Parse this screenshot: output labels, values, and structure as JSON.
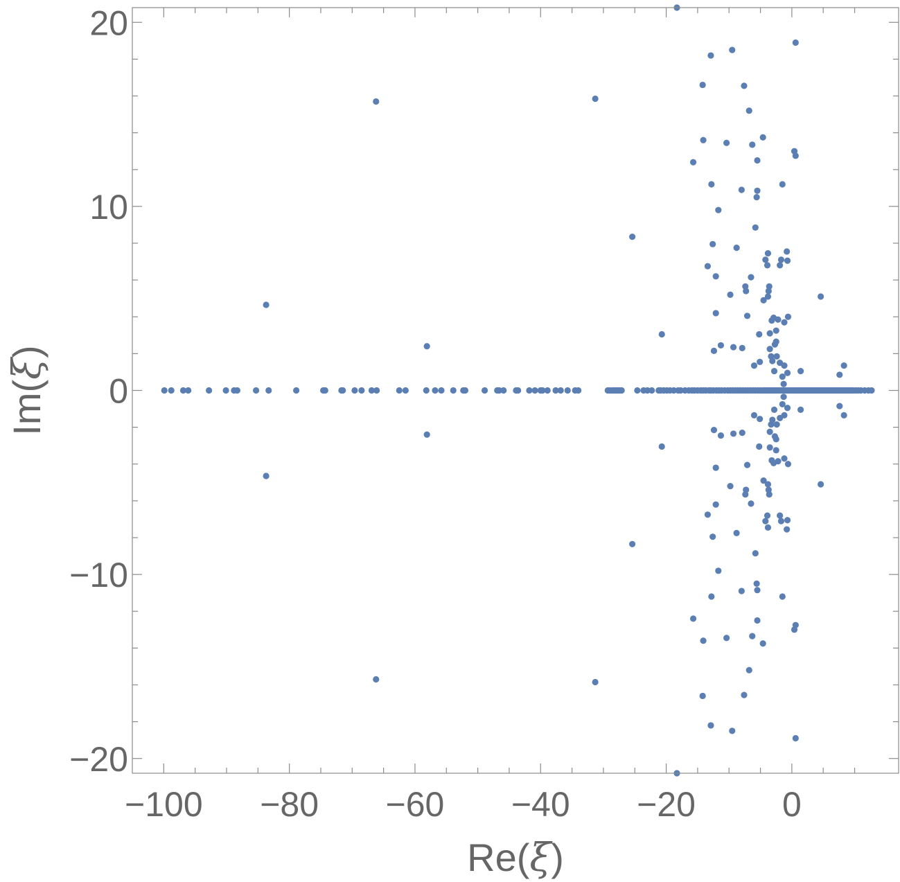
{
  "chart_data": {
    "type": "scatter",
    "xlabel": {
      "prefix": "Re(",
      "symbol": "ξ",
      "suffix": ")"
    },
    "ylabel": {
      "prefix": "Im(",
      "symbol": "ξ",
      "suffix": ")"
    },
    "xlim": [
      -105,
      17
    ],
    "ylim": [
      -20.8,
      20.8
    ],
    "x_ticks": [
      {
        "value": -100,
        "label": "−100"
      },
      {
        "value": -80,
        "label": "−80"
      },
      {
        "value": -60,
        "label": "−60"
      },
      {
        "value": -40,
        "label": "−40"
      },
      {
        "value": -20,
        "label": "−20"
      },
      {
        "value": 0,
        "label": "0"
      }
    ],
    "y_ticks": [
      {
        "value": -20,
        "label": "−20"
      },
      {
        "value": -10,
        "label": "−10"
      },
      {
        "value": 0,
        "label": "0"
      },
      {
        "value": 10,
        "label": "10"
      },
      {
        "value": 20,
        "label": "20"
      }
    ],
    "marker_color": "#5b7fb3",
    "frame_color": "#8a8a8a",
    "grid": false,
    "points_real_axis_x": [
      -99.9,
      -98.8,
      -96.9,
      -96.1,
      -92.8,
      -90.1,
      -88.8,
      -88.3,
      -85.3,
      -83.3,
      -78.9,
      -74.6,
      -74.3,
      -71.7,
      -71.5,
      -69.6,
      -68.5,
      -66.9,
      -66.1,
      -62.5,
      -61.5,
      -58.2,
      -56.8,
      -55.8,
      -53.9,
      -52.3,
      -52.0,
      -48.9,
      -46.9,
      -46.6,
      -45.9,
      -43.9,
      -43.6,
      -41.8,
      -40.9,
      -40.0,
      -39.7,
      -38.9,
      -37.6,
      -36.8,
      -35.7,
      -34.5,
      -34.0,
      -29.3,
      -29.0,
      -28.6,
      -28.3,
      -28.0,
      -27.7,
      -27.4,
      -27.1,
      -24.6,
      -23.6,
      -23.0,
      -22.3,
      -21.2,
      -20.9,
      -20.4,
      -19.9,
      -19.4,
      -18.8,
      -18.1,
      -17.7,
      -17.0,
      -16.4,
      -15.9,
      -15.5,
      -15.0,
      -14.5,
      -14.1,
      -13.7,
      -13.2,
      -12.9,
      -12.5,
      -12.0,
      -11.6,
      -11.2,
      -10.7,
      -10.2,
      -9.8,
      -9.4,
      -9.0,
      -8.6,
      -8.2,
      -7.8,
      -7.4,
      -7.0,
      -6.6,
      -6.2,
      -5.8,
      -5.4,
      -5.0,
      -4.6,
      -4.3,
      -4.0,
      -3.7,
      -3.4,
      -3.1,
      -2.8,
      -2.5,
      -2.2,
      -1.9,
      -1.6,
      -1.3,
      -1.0,
      -0.7,
      -0.4,
      -0.1,
      0.2,
      0.5,
      0.8,
      1.1,
      1.4,
      1.7,
      2.0,
      2.3,
      2.6,
      2.9,
      3.2,
      3.5,
      3.8,
      4.1,
      4.4,
      4.7,
      5.0,
      5.3,
      5.6,
      5.9,
      6.2,
      6.5,
      6.8,
      7.1,
      7.4,
      7.7,
      8.0,
      8.3,
      8.6,
      8.9,
      9.2,
      9.5,
      9.8,
      10.2,
      10.6,
      11.0,
      11.6,
      12.2,
      12.7
    ],
    "points_conjugate_pairs": [
      [
        -83.7,
        4.65
      ],
      [
        -66.2,
        15.7
      ],
      [
        -58.1,
        2.4
      ],
      [
        -31.3,
        15.85
      ],
      [
        -25.4,
        8.35
      ],
      [
        -20.7,
        3.05
      ],
      [
        -18.3,
        20.8
      ],
      [
        -15.7,
        12.4
      ],
      [
        -14.2,
        16.6
      ],
      [
        -14.1,
        13.6
      ],
      [
        -13.4,
        6.75
      ],
      [
        -12.9,
        18.2
      ],
      [
        -12.8,
        11.2
      ],
      [
        -12.6,
        7.95
      ],
      [
        -12.4,
        2.15
      ],
      [
        -12.1,
        4.2
      ],
      [
        -12.1,
        6.2
      ],
      [
        -11.7,
        9.8
      ],
      [
        -11.3,
        2.45
      ],
      [
        -10.4,
        13.45
      ],
      [
        -9.8,
        5.2
      ],
      [
        -9.5,
        18.5
      ],
      [
        -9.3,
        2.35
      ],
      [
        -8.8,
        7.75
      ],
      [
        -8.0,
        10.9
      ],
      [
        -7.9,
        2.3
      ],
      [
        -7.6,
        16.55
      ],
      [
        -7.4,
        5.65
      ],
      [
        -7.3,
        5.4
      ],
      [
        -7.1,
        4.05
      ],
      [
        -6.8,
        15.2
      ],
      [
        -6.5,
        6.15
      ],
      [
        -6.3,
        13.35
      ],
      [
        -6.0,
        1.35
      ],
      [
        -5.8,
        8.85
      ],
      [
        -5.6,
        10.5
      ],
      [
        -5.5,
        10.85
      ],
      [
        -5.5,
        12.5
      ],
      [
        -5.2,
        3.05
      ],
      [
        -5.1,
        1.55
      ],
      [
        -4.6,
        13.75
      ],
      [
        -4.5,
        4.9
      ],
      [
        -4.2,
        7.1
      ],
      [
        -3.9,
        6.8
      ],
      [
        -3.8,
        7.45
      ],
      [
        -3.8,
        5.1
      ],
      [
        -3.7,
        5.4
      ],
      [
        -3.6,
        5.65
      ],
      [
        -3.5,
        2.25
      ],
      [
        -3.5,
        3.1
      ],
      [
        -3.3,
        1.85
      ],
      [
        -3.2,
        3.8
      ],
      [
        -3.1,
        1.6
      ],
      [
        -2.9,
        3.95
      ],
      [
        -2.8,
        1.05
      ],
      [
        -2.7,
        2.5
      ],
      [
        -2.5,
        2.65
      ],
      [
        -2.5,
        3.25
      ],
      [
        -2.4,
        1.85
      ],
      [
        -2.2,
        3.85
      ],
      [
        -1.9,
        6.8
      ],
      [
        -1.9,
        1.5
      ],
      [
        -1.7,
        7.1
      ],
      [
        -1.5,
        11.2
      ],
      [
        -1.5,
        0.75
      ],
      [
        -1.3,
        0.35
      ],
      [
        -1.2,
        3.7
      ],
      [
        -1.2,
        1.35
      ],
      [
        -0.8,
        7.55
      ],
      [
        -0.7,
        7.05
      ],
      [
        -0.7,
        0.95
      ],
      [
        -0.6,
        4.0
      ],
      [
        0.4,
        13.0
      ],
      [
        0.6,
        18.9
      ],
      [
        0.6,
        12.75
      ],
      [
        1.4,
        1.05
      ],
      [
        4.6,
        5.1
      ],
      [
        7.6,
        0.85
      ],
      [
        8.3,
        1.35
      ]
    ]
  }
}
